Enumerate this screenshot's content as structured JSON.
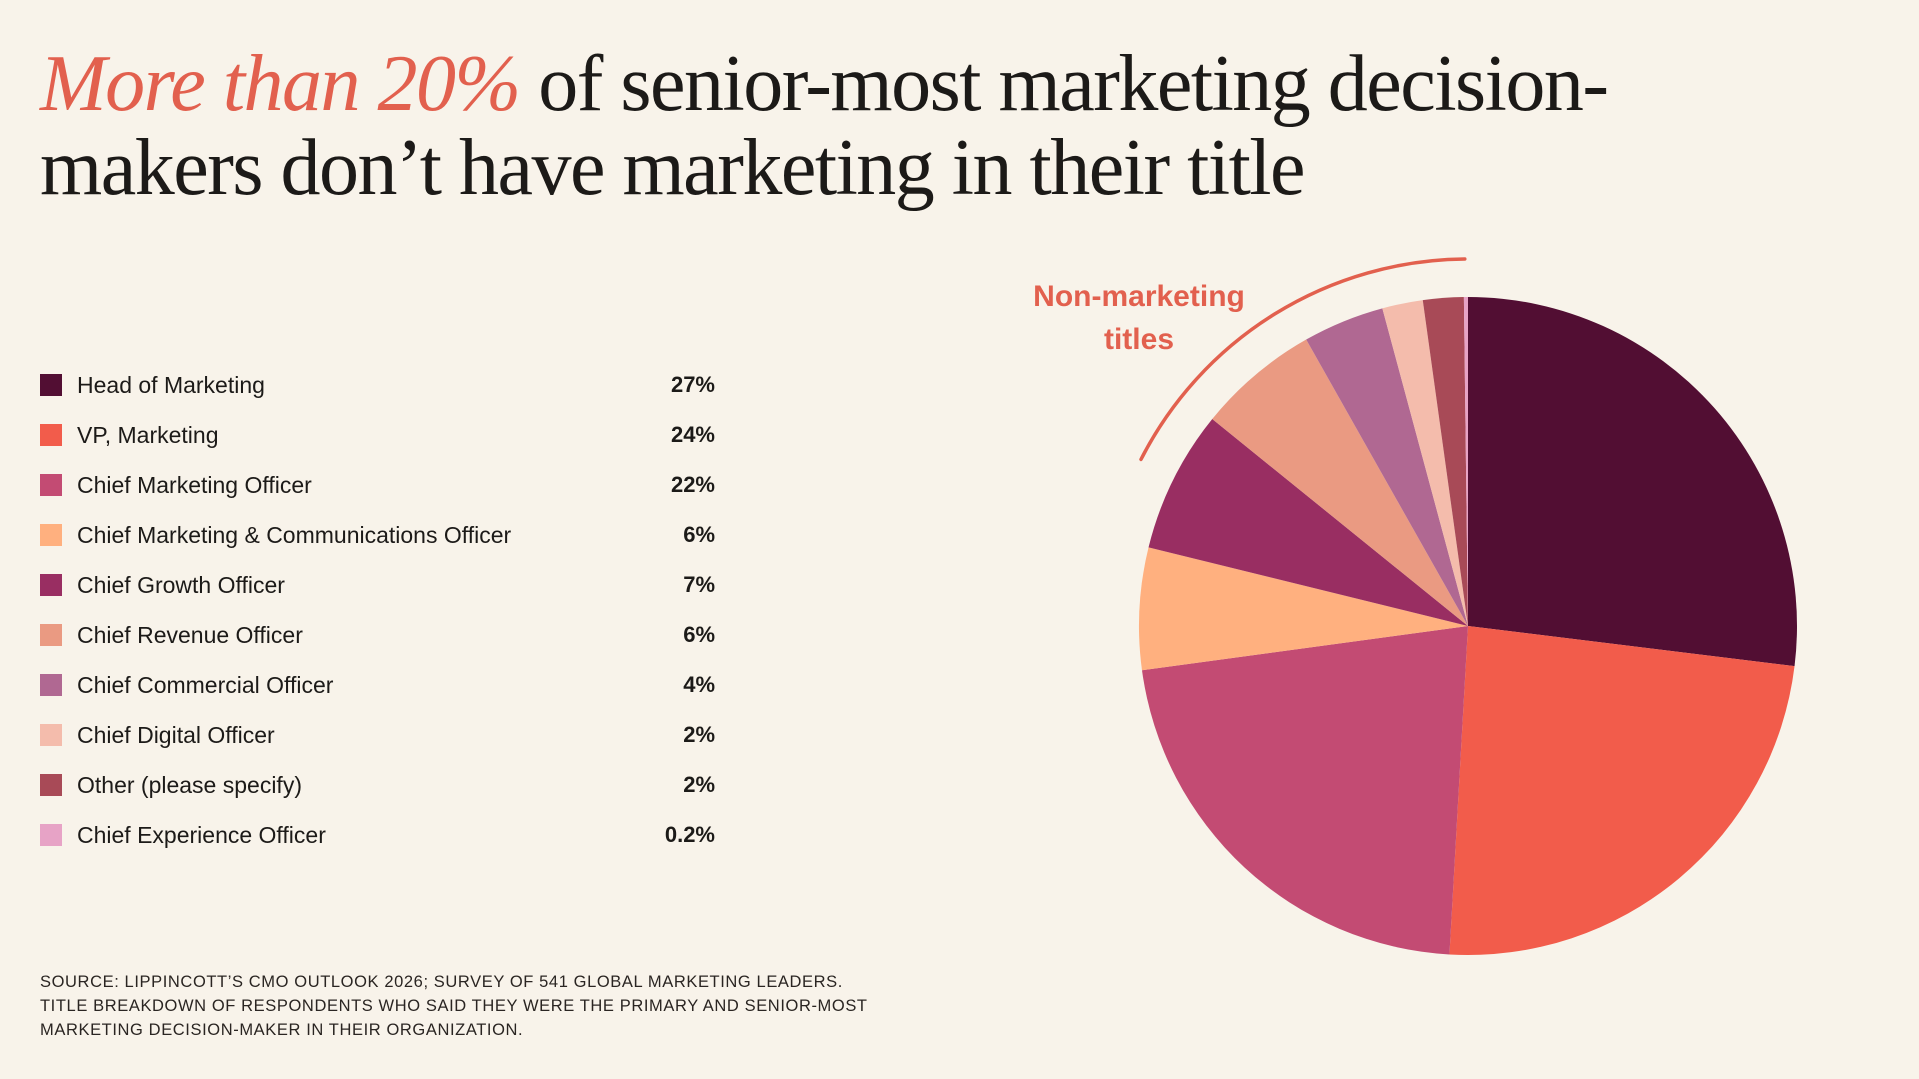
{
  "headline": {
    "accent_text": "More than 20%",
    "rest_line1": " of senior-most marketing decision-",
    "rest_line2": "makers don’t have marketing in their title"
  },
  "colors": {
    "background": "#f8f3ea",
    "accent": "#e2604e",
    "text": "#1c1a18"
  },
  "annotation": {
    "line1": "Non-marketing",
    "line2": "titles"
  },
  "chart_data": {
    "type": "pie",
    "start_angle": "12 o'clock",
    "direction": "clockwise",
    "slices": [
      {
        "label": "Head of Marketing",
        "display": "27%",
        "value": 27,
        "color": "#520e33"
      },
      {
        "label": "VP, Marketing",
        "display": "24%",
        "value": 24,
        "color": "#f25c4b"
      },
      {
        "label": "Chief Marketing Officer",
        "display": "22%",
        "value": 22,
        "color": "#c34b73"
      },
      {
        "label": "Chief Marketing & Communications Officer",
        "display": "6%",
        "value": 6,
        "color": "#ffb07f"
      },
      {
        "label": "Chief Growth Officer",
        "display": "7%",
        "value": 7,
        "color": "#992e62"
      },
      {
        "label": "Chief Revenue Officer",
        "display": "6%",
        "value": 6,
        "color": "#ea9a82"
      },
      {
        "label": "Chief Commercial Officer",
        "display": "4%",
        "value": 4,
        "color": "#b06892"
      },
      {
        "label": "Chief Digital Officer",
        "display": "2%",
        "value": 2,
        "color": "#f4bcac"
      },
      {
        "label": "Other (please specify)",
        "display": "2%",
        "value": 2,
        "color": "#a84a57"
      },
      {
        "label": "Chief Experience Officer",
        "display": "0.2%",
        "value": 0.2,
        "color": "#e7a3c6"
      }
    ]
  },
  "source": {
    "line1": "SOURCE: LIPPINCOTT’S CMO OUTLOOK 2026; SURVEY OF 541 GLOBAL MARKETING LEADERS.",
    "line2": "TITLE BREAKDOWN OF RESPONDENTS WHO SAID THEY WERE THE PRIMARY AND SENIOR-MOST",
    "line3": "MARKETING DECISION-MAKER IN THEIR ORGANIZATION."
  }
}
